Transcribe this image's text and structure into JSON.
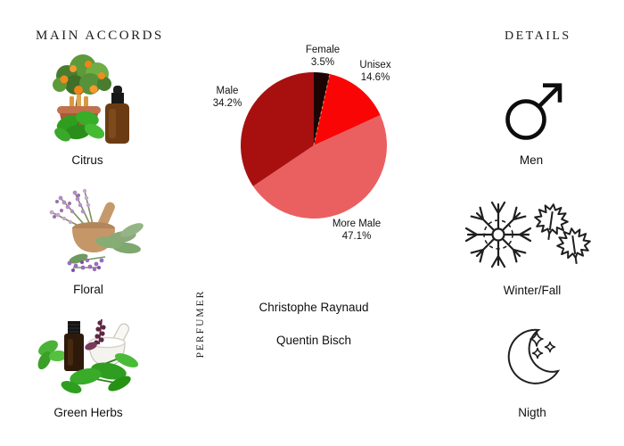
{
  "page": {
    "background": "#ffffff"
  },
  "left_column": {
    "header": "MAIN ACCORDS",
    "accords": [
      {
        "label": "Citrus",
        "illustration": "orange-tree-dropper-bottle-basil"
      },
      {
        "label": "Floral",
        "illustration": "wooden-mortar-lavender-sage"
      },
      {
        "label": "Green Herbs",
        "illustration": "oil-bottle-white-mortar-basil"
      }
    ]
  },
  "right_column": {
    "header": "DETAILS",
    "details": [
      {
        "label": "Men",
        "icon": "mars-symbol-icon"
      },
      {
        "label": "Winter/Fall",
        "icon": "snowflake-maple-leaves-icon"
      },
      {
        "label": "Nigth",
        "icon": "crescent-moon-stars-icon"
      }
    ]
  },
  "perfumer": {
    "section_label": "PERFUMER",
    "names": [
      "Christophe Raynaud",
      "Quentin Bisch"
    ]
  },
  "chart_data": {
    "type": "pie",
    "title": "",
    "legend_position": "none",
    "start_angle_deg": 0,
    "direction": "clockwise-from-top",
    "separator_after_index": 0,
    "separator_color": "#c9a070",
    "slices": [
      {
        "label": "Female",
        "value": 3.5,
        "percent_text": "3.5%",
        "color": "#1c0404"
      },
      {
        "label": "Unisex",
        "value": 14.6,
        "percent_text": "14.6%",
        "color": "#fa0505"
      },
      {
        "label": "More Male",
        "value": 47.1,
        "percent_text": "47.1%",
        "color": "#ea6060"
      },
      {
        "label": "Male",
        "value": 34.2,
        "percent_text": "34.2%",
        "color": "#a81010"
      }
    ]
  }
}
